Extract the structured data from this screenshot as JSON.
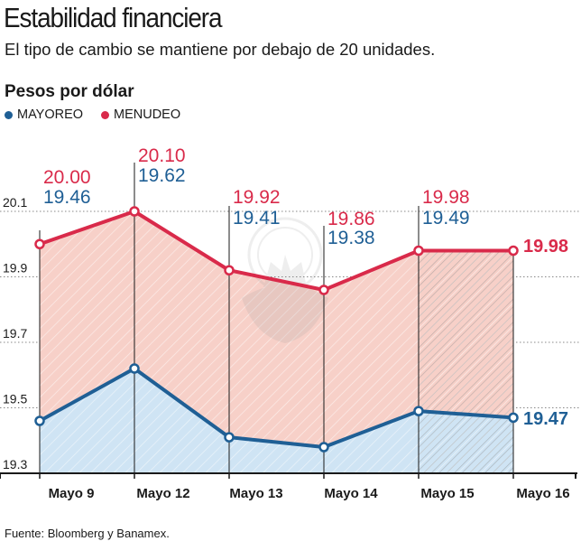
{
  "title": "Estabilidad financiera",
  "subtitle": "El tipo de cambio se mantiene por debajo de 20 unidades.",
  "source": "Fuente: Bloomberg y Banamex.",
  "colors": {
    "mayoreo": "#1f5f95",
    "menudeo": "#d92a4a",
    "mayoreo_fill": "#cfe4f4",
    "menudeo_fill": "#f7d0c8"
  },
  "chart_data": {
    "type": "area",
    "title": "Estabilidad financiera",
    "ylabel": "Pesos por dólar",
    "xlabel": "",
    "ylim": [
      19.3,
      20.18
    ],
    "yticks": [
      "20.1",
      "19.9",
      "19.7",
      "19.5",
      "19.3"
    ],
    "categories": [
      "Mayo 9",
      "Mayo 12",
      "Mayo 13",
      "Mayo 14",
      "Mayo 15",
      "Mayo 16"
    ],
    "series": [
      {
        "name": "MAYOREO",
        "values": [
          19.46,
          19.62,
          19.41,
          19.38,
          19.49,
          19.47
        ],
        "labels": [
          "19.46",
          "19.62",
          "19.41",
          "19.38",
          "19.49",
          "19.47"
        ]
      },
      {
        "name": "MENUDEO",
        "values": [
          20.0,
          20.1,
          19.92,
          19.86,
          19.98,
          19.98
        ],
        "labels": [
          "20.00",
          "20.10",
          "19.92",
          "19.86",
          "19.98",
          "19.98"
        ]
      }
    ]
  }
}
